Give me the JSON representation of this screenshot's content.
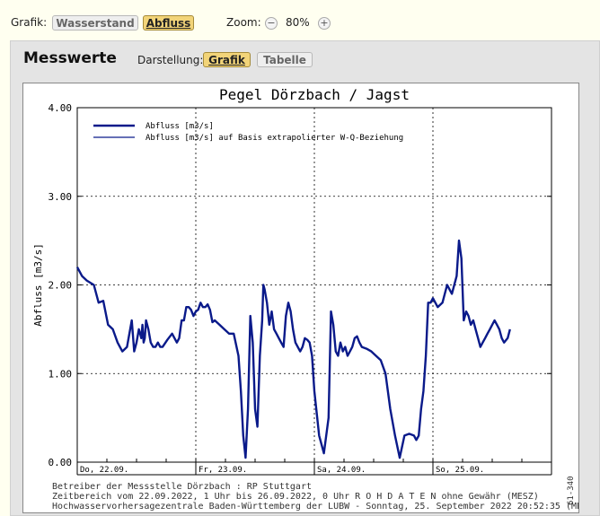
{
  "toolbar": {
    "grafik_label": "Grafik:",
    "wasserstand": "Wasserstand",
    "abfluss": "Abfluss",
    "zoom_label": "Zoom:",
    "zoom_minus": "−",
    "zoom_value": "80%",
    "zoom_plus": "+"
  },
  "panel": {
    "title": "Messwerte",
    "darstellung_label": "Darstellung:",
    "grafik": "Grafik",
    "tabelle": "Tabelle"
  },
  "chart_data": {
    "type": "line",
    "title": "Pegel Dörzbach / Jagst",
    "ylabel": "Abfluss [m3/s]",
    "xlabel": "",
    "ylim": [
      0,
      4
    ],
    "xlim": [
      0,
      4
    ],
    "x_unit_note": "days since 22.09.2022 00:00",
    "y_ticks": [
      "0.00",
      "1.00",
      "2.00",
      "3.00",
      "4.00"
    ],
    "x_ticks": [
      {
        "x": 0,
        "label": "Do, 22.09."
      },
      {
        "x": 1,
        "label": "Fr, 23.09."
      },
      {
        "x": 2,
        "label": "Sa, 24.09."
      },
      {
        "x": 3,
        "label": "So, 25.09."
      }
    ],
    "grid": true,
    "legend_position": "top-left",
    "series": [
      {
        "name": "Abfluss [m3/s]",
        "color": "#0a1a8a",
        "x": [
          0.0,
          0.04,
          0.08,
          0.14,
          0.18,
          0.22,
          0.26,
          0.3,
          0.34,
          0.36,
          0.38,
          0.42,
          0.46,
          0.48,
          0.5,
          0.52,
          0.53,
          0.54,
          0.55,
          0.56,
          0.57,
          0.58,
          0.59,
          0.6,
          0.62,
          0.64,
          0.66,
          0.68,
          0.7,
          0.72,
          0.76,
          0.8,
          0.84,
          0.86,
          0.88,
          0.9,
          0.92,
          0.94,
          0.96,
          0.98,
          1.0,
          1.02,
          1.04,
          1.06,
          1.08,
          1.1,
          1.12,
          1.14,
          1.16,
          1.2,
          1.24,
          1.28,
          1.32,
          1.36,
          1.38,
          1.4,
          1.42,
          1.44,
          1.46,
          1.48,
          1.5,
          1.52,
          1.54,
          1.56,
          1.57,
          1.58,
          1.6,
          1.62,
          1.64,
          1.66,
          1.68,
          1.7,
          1.72,
          1.74,
          1.76,
          1.78,
          1.8,
          1.82,
          1.84,
          1.86,
          1.88,
          1.9,
          1.92,
          1.94,
          1.96,
          1.98,
          2.0,
          2.04,
          2.08,
          2.12,
          2.14,
          2.16,
          2.18,
          2.2,
          2.22,
          2.24,
          2.26,
          2.28,
          2.3,
          2.32,
          2.34,
          2.36,
          2.38,
          2.4,
          2.44,
          2.48,
          2.52,
          2.56,
          2.6,
          2.64,
          2.68,
          2.72,
          2.76,
          2.8,
          2.84,
          2.86,
          2.88,
          2.9,
          2.92,
          2.94,
          2.96,
          2.98,
          3.0,
          3.04,
          3.08,
          3.12,
          3.16,
          3.2,
          3.22,
          3.24,
          3.26,
          3.28,
          3.3,
          3.32,
          3.34,
          3.36,
          3.38,
          3.4,
          3.42,
          3.44,
          3.46,
          3.48,
          3.5,
          3.52,
          3.54,
          3.56,
          3.58,
          3.6,
          3.63,
          3.65
        ],
        "y": [
          2.2,
          2.1,
          2.05,
          2.0,
          1.8,
          1.82,
          1.55,
          1.5,
          1.35,
          1.3,
          1.25,
          1.3,
          1.6,
          1.25,
          1.35,
          1.5,
          1.45,
          1.4,
          1.55,
          1.35,
          1.4,
          1.6,
          1.55,
          1.5,
          1.35,
          1.3,
          1.3,
          1.35,
          1.3,
          1.3,
          1.38,
          1.45,
          1.35,
          1.4,
          1.6,
          1.6,
          1.75,
          1.75,
          1.72,
          1.65,
          1.7,
          1.72,
          1.8,
          1.75,
          1.75,
          1.78,
          1.72,
          1.58,
          1.6,
          1.55,
          1.5,
          1.45,
          1.45,
          1.2,
          0.8,
          0.3,
          0.05,
          0.6,
          1.65,
          1.35,
          0.6,
          0.4,
          1.2,
          1.6,
          2.0,
          1.95,
          1.8,
          1.55,
          1.7,
          1.5,
          1.45,
          1.4,
          1.35,
          1.3,
          1.65,
          1.8,
          1.7,
          1.5,
          1.35,
          1.3,
          1.25,
          1.3,
          1.4,
          1.38,
          1.35,
          1.2,
          0.8,
          0.3,
          0.1,
          0.5,
          1.7,
          1.55,
          1.25,
          1.2,
          1.35,
          1.25,
          1.3,
          1.2,
          1.25,
          1.3,
          1.4,
          1.42,
          1.35,
          1.3,
          1.28,
          1.25,
          1.2,
          1.15,
          1.0,
          0.6,
          0.3,
          0.05,
          0.3,
          0.32,
          0.3,
          0.25,
          0.3,
          0.6,
          0.8,
          1.2,
          1.8,
          1.8,
          1.85,
          1.75,
          1.8,
          2.0,
          1.9,
          2.1,
          2.5,
          2.3,
          1.6,
          1.7,
          1.65,
          1.55,
          1.6,
          1.5,
          1.4,
          1.3,
          1.35,
          1.4,
          1.45,
          1.5,
          1.55,
          1.6,
          1.55,
          1.5,
          1.4,
          1.35,
          1.4,
          1.5
        ]
      },
      {
        "name": "Abfluss [m3/s] auf Basis extrapolierter W-Q-Beziehung",
        "color": "#0a1a8a",
        "x": [],
        "y": []
      }
    ]
  },
  "footer": {
    "line1": "Betreiber der Messstelle Dörzbach : RP Stuttgart",
    "line2": "Zeitbereich vom 22.09.2022, 1 Uhr bis 26.09.2022, 0 Uhr   R O H D A T E N ohne Gewähr (MESZ)",
    "line3": "Hochwasservorhersagezentrale Baden-Württemberg der LUBW - Sonntag, 25. September 2022 20:52:35 (MESZ)",
    "side_id": "61-340"
  }
}
